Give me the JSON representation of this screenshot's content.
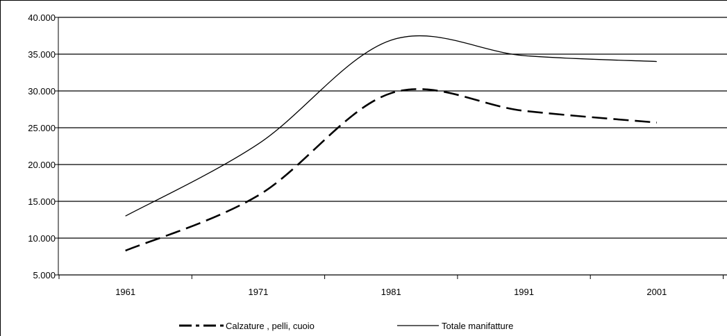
{
  "chart_data": {
    "type": "line",
    "x": [
      1961,
      1971,
      1981,
      1991,
      2001
    ],
    "categories": [
      "1961",
      "1971",
      "1981",
      "1991",
      "2001"
    ],
    "series": [
      {
        "name": "Calzature , pelli, cuoio",
        "values": [
          8300,
          15800,
          29700,
          27300,
          25700
        ],
        "style": "dashed",
        "color": "#000000"
      },
      {
        "name": "Totale manifatture",
        "values": [
          13000,
          22800,
          36900,
          34800,
          34000
        ],
        "style": "solid",
        "color": "#000000"
      }
    ],
    "ylim": [
      5000,
      40000
    ],
    "yticks": [
      "5.000",
      "10.000",
      "15.000",
      "20.000",
      "25.000",
      "30.000",
      "35.000",
      "40.000"
    ],
    "grid": true,
    "legend_position": "bottom",
    "title": "",
    "xlabel": "",
    "ylabel": ""
  }
}
